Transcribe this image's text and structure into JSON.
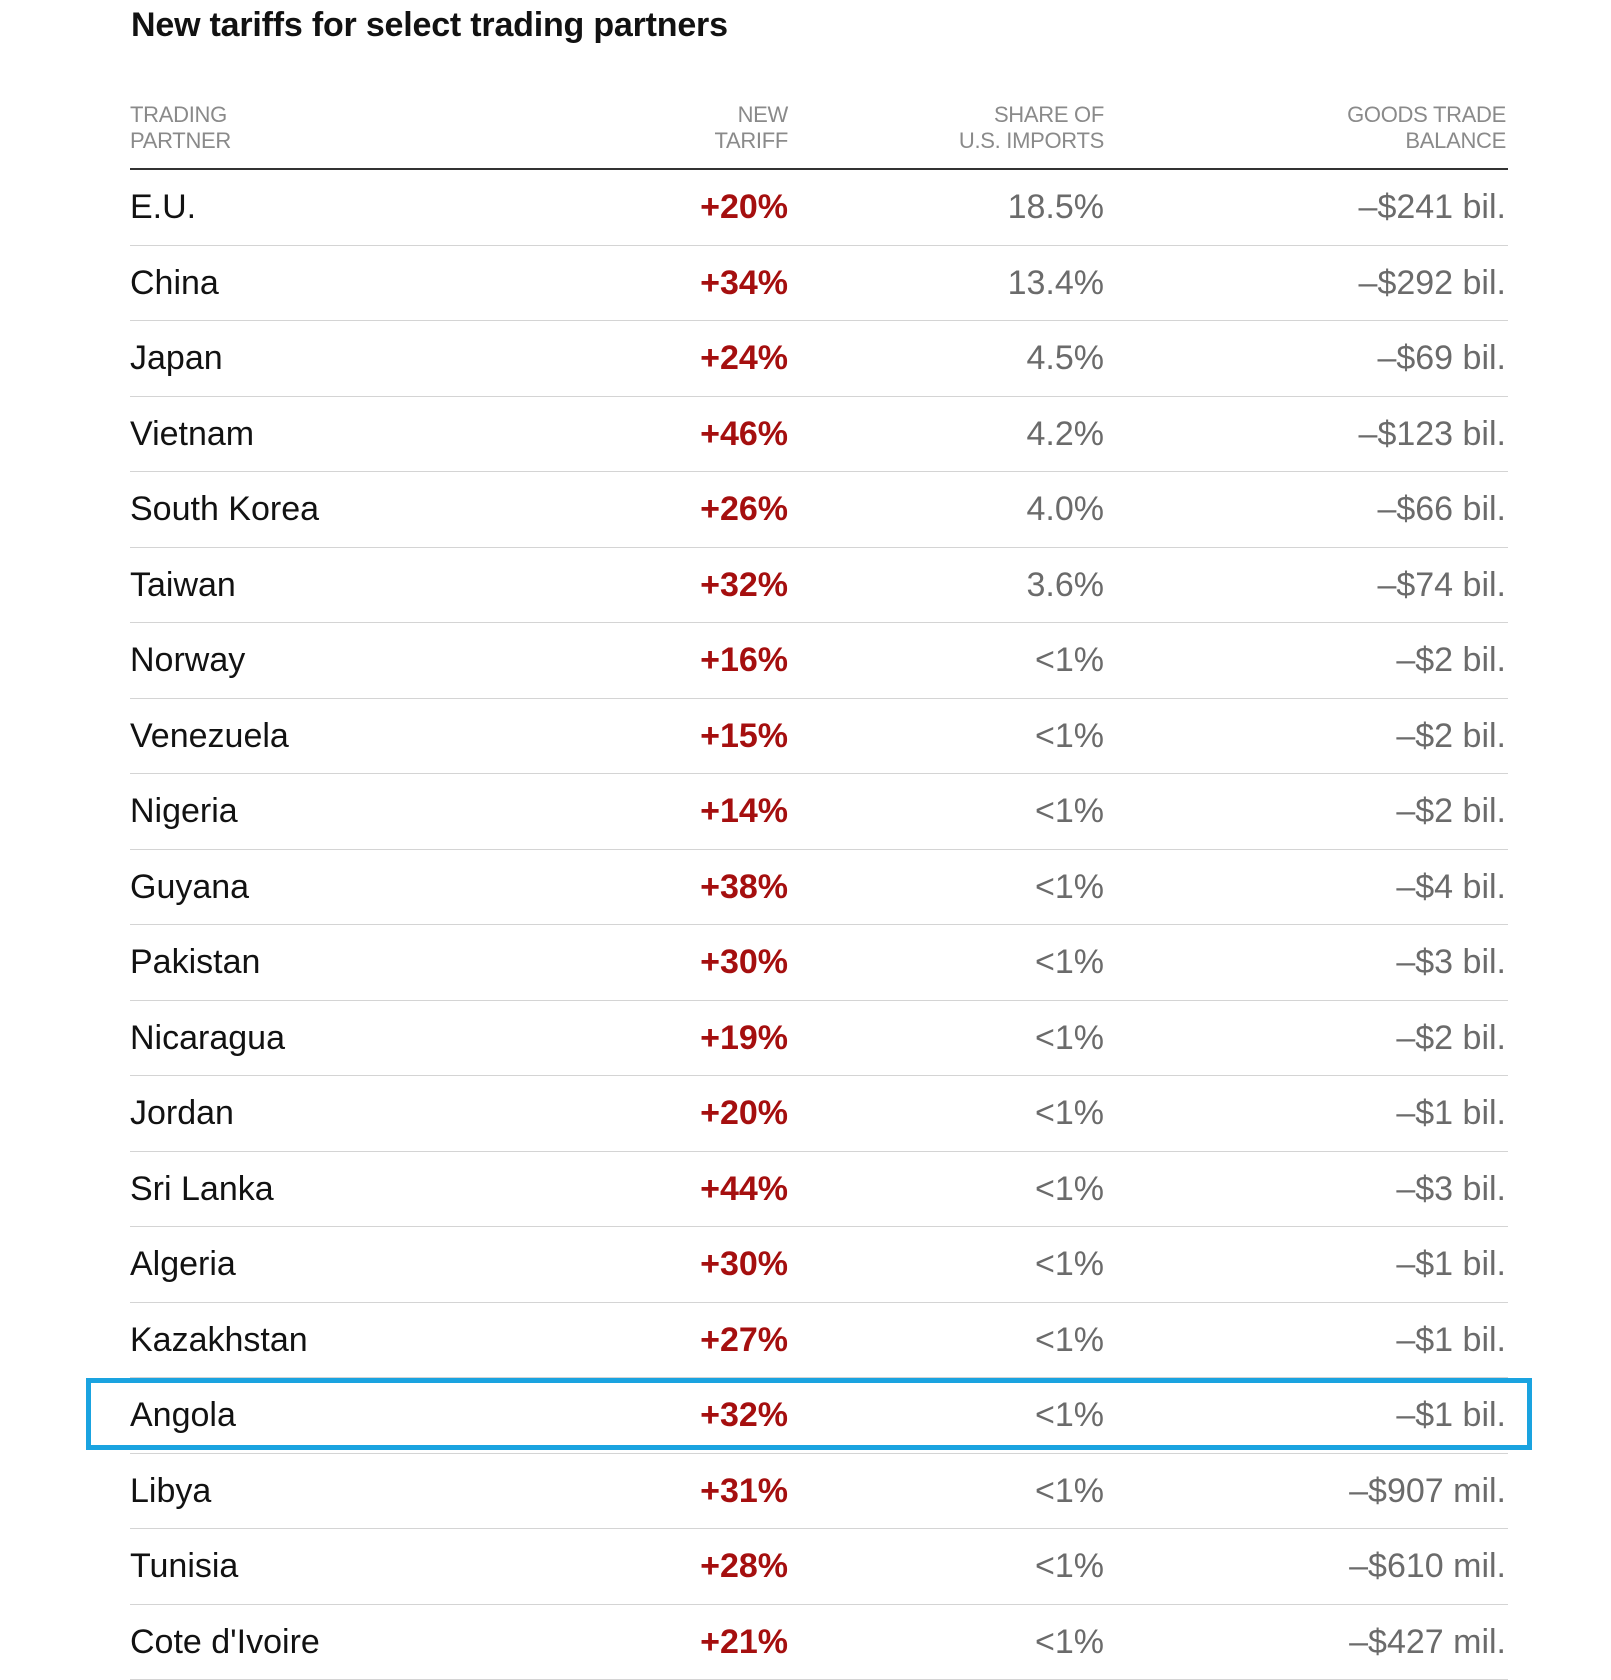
{
  "title": "New tariffs for select trading partners",
  "headers": {
    "partner": [
      "TRADING",
      "PARTNER"
    ],
    "tariff": [
      "NEW",
      "TARIFF"
    ],
    "share": [
      "SHARE OF",
      "U.S. IMPORTS"
    ],
    "balance": [
      "GOODS TRADE",
      "BALANCE"
    ]
  },
  "colors": {
    "tariff": "#a50f0f",
    "highlight": "#1aa3e0",
    "header": "#8a8a8a"
  },
  "highlighted_row": "Angola",
  "rows": [
    {
      "partner": "E.U.",
      "tariff": "+20%",
      "share": "18.5%",
      "balance": "–$241 bil."
    },
    {
      "partner": "China",
      "tariff": "+34%",
      "share": "13.4%",
      "balance": "–$292 bil."
    },
    {
      "partner": "Japan",
      "tariff": "+24%",
      "share": "4.5%",
      "balance": "–$69 bil."
    },
    {
      "partner": "Vietnam",
      "tariff": "+46%",
      "share": "4.2%",
      "balance": "–$123 bil."
    },
    {
      "partner": "South Korea",
      "tariff": "+26%",
      "share": "4.0%",
      "balance": "–$66 bil."
    },
    {
      "partner": "Taiwan",
      "tariff": "+32%",
      "share": "3.6%",
      "balance": "–$74 bil."
    },
    {
      "partner": "Norway",
      "tariff": "+16%",
      "share": "<1%",
      "balance": "–$2 bil."
    },
    {
      "partner": "Venezuela",
      "tariff": "+15%",
      "share": "<1%",
      "balance": "–$2 bil."
    },
    {
      "partner": "Nigeria",
      "tariff": "+14%",
      "share": "<1%",
      "balance": "–$2 bil."
    },
    {
      "partner": "Guyana",
      "tariff": "+38%",
      "share": "<1%",
      "balance": "–$4 bil."
    },
    {
      "partner": "Pakistan",
      "tariff": "+30%",
      "share": "<1%",
      "balance": "–$3 bil."
    },
    {
      "partner": "Nicaragua",
      "tariff": "+19%",
      "share": "<1%",
      "balance": "–$2 bil."
    },
    {
      "partner": "Jordan",
      "tariff": "+20%",
      "share": "<1%",
      "balance": "–$1 bil."
    },
    {
      "partner": "Sri Lanka",
      "tariff": "+44%",
      "share": "<1%",
      "balance": "–$3 bil."
    },
    {
      "partner": "Algeria",
      "tariff": "+30%",
      "share": "<1%",
      "balance": "–$1 bil."
    },
    {
      "partner": "Kazakhstan",
      "tariff": "+27%",
      "share": "<1%",
      "balance": "–$1 bil."
    },
    {
      "partner": "Angola",
      "tariff": "+32%",
      "share": "<1%",
      "balance": "–$1 bil."
    },
    {
      "partner": "Libya",
      "tariff": "+31%",
      "share": "<1%",
      "balance": "–$907 mil."
    },
    {
      "partner": "Tunisia",
      "tariff": "+28%",
      "share": "<1%",
      "balance": "–$610 mil."
    },
    {
      "partner": "Cote d'Ivoire",
      "tariff": "+21%",
      "share": "<1%",
      "balance": "–$427 mil."
    }
  ]
}
